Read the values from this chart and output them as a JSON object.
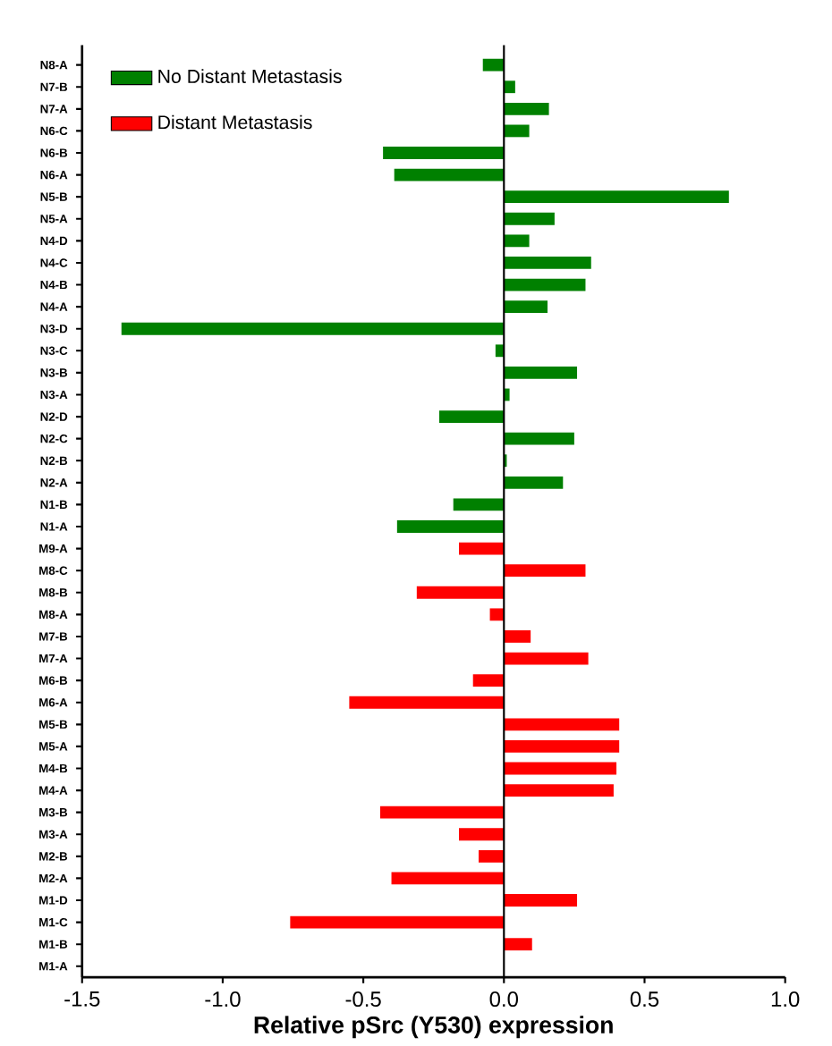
{
  "chart_data": {
    "type": "bar",
    "orientation": "horizontal",
    "xlabel": "Relative pSrc (Y530) expression",
    "categories": [
      "N8-A",
      "N7-B",
      "N7-A",
      "N6-C",
      "N6-B",
      "N6-A",
      "N5-B",
      "N5-A",
      "N4-D",
      "N4-C",
      "N4-B",
      "N4-A",
      "N3-D",
      "N3-C",
      "N3-B",
      "N3-A",
      "N2-D",
      "N2-C",
      "N2-B",
      "N2-A",
      "N1-B",
      "N1-A",
      "M9-A",
      "M8-C",
      "M8-B",
      "M8-A",
      "M7-B",
      "M7-A",
      "M6-B",
      "M6-A",
      "M5-B",
      "M5-A",
      "M4-B",
      "M4-A",
      "M3-B",
      "M3-A",
      "M2-B",
      "M2-A",
      "M1-D",
      "M1-C",
      "M1-B",
      "M1-A"
    ],
    "series": [
      {
        "name": "No Distant Metastasis",
        "color": "#008000",
        "values": [
          -0.075,
          0.04,
          0.16,
          0.09,
          -0.43,
          -0.39,
          0.8,
          0.18,
          0.09,
          0.31,
          0.29,
          0.155,
          -1.36,
          -0.03,
          0.26,
          0.02,
          -0.23,
          0.25,
          0.01,
          0.21,
          -0.18,
          -0.38,
          null,
          null,
          null,
          null,
          null,
          null,
          null,
          null,
          null,
          null,
          null,
          null,
          null,
          null,
          null,
          null,
          null,
          null,
          null,
          null
        ]
      },
      {
        "name": "Distant Metastasis",
        "color": "#ff0000",
        "values": [
          null,
          null,
          null,
          null,
          null,
          null,
          null,
          null,
          null,
          null,
          null,
          null,
          null,
          null,
          null,
          null,
          null,
          null,
          null,
          null,
          null,
          null,
          -0.16,
          0.29,
          -0.31,
          -0.05,
          0.095,
          0.3,
          -0.11,
          -0.55,
          0.41,
          0.41,
          0.4,
          0.39,
          -0.44,
          -0.16,
          -0.09,
          -0.4,
          0.26,
          -0.76,
          0.1,
          0
        ]
      }
    ],
    "xlim": [
      -1.5,
      1.0
    ],
    "xticks": [
      -1.5,
      {
        "value": -1,
        "label": "-1.0"
      },
      -0.5,
      {
        "value": 0,
        "label": "0.0"
      },
      0.5,
      {
        "value": 1,
        "label": "1.0"
      }
    ],
    "ref_lines": [
      {
        "axis": "x",
        "value": 0
      }
    ],
    "legend": "top left",
    "grid": false
  }
}
